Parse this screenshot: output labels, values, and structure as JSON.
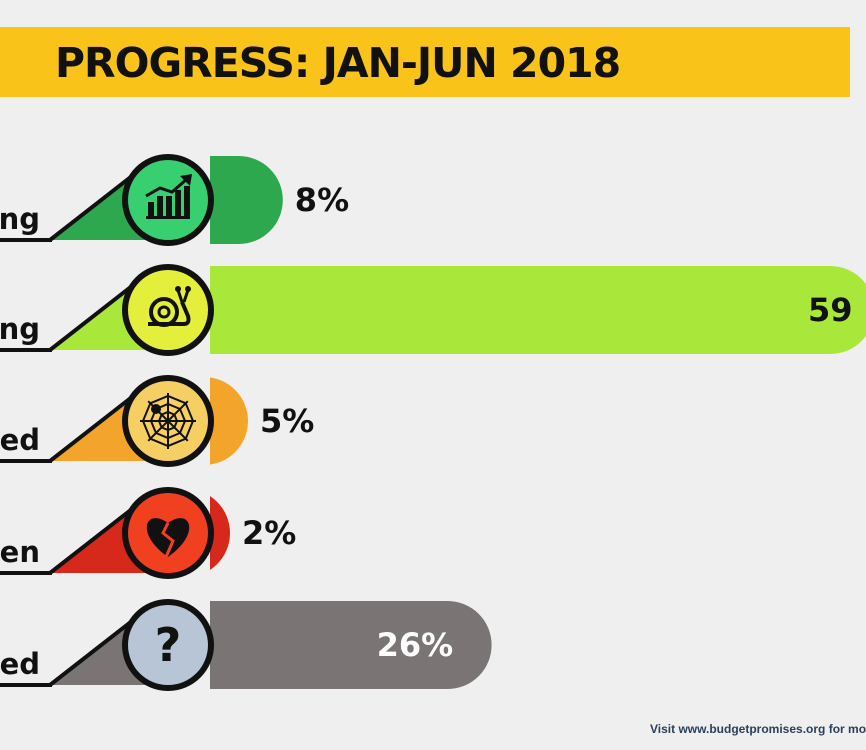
{
  "header": {
    "title": "PROGRESS: JAN-JUN 2018"
  },
  "chart_data": {
    "type": "bar",
    "title": "PROGRESS: JAN-JUN 2018",
    "categories": [
      "ng",
      "ng",
      "ed",
      "en",
      "ed"
    ],
    "values": [
      8,
      59,
      5,
      2,
      26
    ],
    "value_labels": [
      "8%",
      "59",
      "5%",
      "2%",
      "26%"
    ],
    "unit": "%",
    "orientation": "horizontal",
    "icons": [
      "bar-chart-growth-icon",
      "snail-icon",
      "spider-web-icon",
      "broken-heart-icon",
      "question-mark-icon"
    ],
    "colors": [
      "#2ea84f",
      "#a9e83a",
      "#f3a52b",
      "#d6291c",
      "#7a7474"
    ],
    "icon_colors": [
      "#37cf70",
      "#e3ef3a",
      "#f6cf62",
      "#f0401f",
      "#b7c5d6"
    ],
    "grid": false,
    "legend": "none"
  },
  "footer": {
    "text": "Visit www.budgetpromises.org for mo"
  }
}
